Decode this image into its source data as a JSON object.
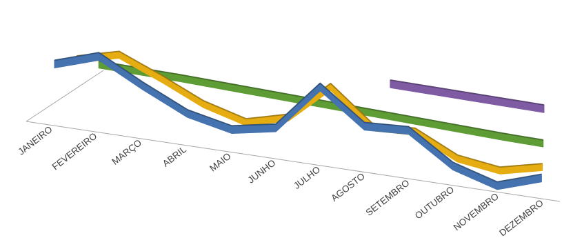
{
  "chart_data": {
    "type": "line",
    "style": "3d-ribbon",
    "grid": false,
    "legend": "none",
    "categories": [
      "JANEIRO",
      "FEVEREIRO",
      "MARÇO",
      "ABRIL",
      "MAIO",
      "JUNHO",
      "JULHO",
      "AGOSTO",
      "SETEMBRO",
      "OUTUBRO",
      "NOVEMBRO",
      "DEZEMBRO"
    ],
    "series": [
      {
        "color": "#7e5ba3",
        "values": [
          null,
          null,
          null,
          null,
          null,
          null,
          null,
          5.0,
          4.8,
          4.6,
          4.4,
          4.2
        ]
      },
      {
        "color": "#5e9c35",
        "values": [
          5.0,
          4.8,
          4.6,
          4.3,
          4.0,
          3.7,
          3.4,
          3.1,
          2.8,
          2.5,
          2.2,
          2.0
        ]
      },
      {
        "color": "#e5ad12",
        "values": [
          8.5,
          10.3,
          7.3,
          4.0,
          2.0,
          3.8,
          10.0,
          4.2,
          4.5,
          1.0,
          0.0,
          1.6
        ]
      },
      {
        "color": "#4473af",
        "values": [
          10.4,
          12.8,
          8.9,
          5.4,
          3.8,
          5.2,
          13.2,
          7.7,
          8.1,
          3.2,
          1.0,
          3.4
        ]
      }
    ],
    "ylim": [
      0,
      14
    ]
  }
}
